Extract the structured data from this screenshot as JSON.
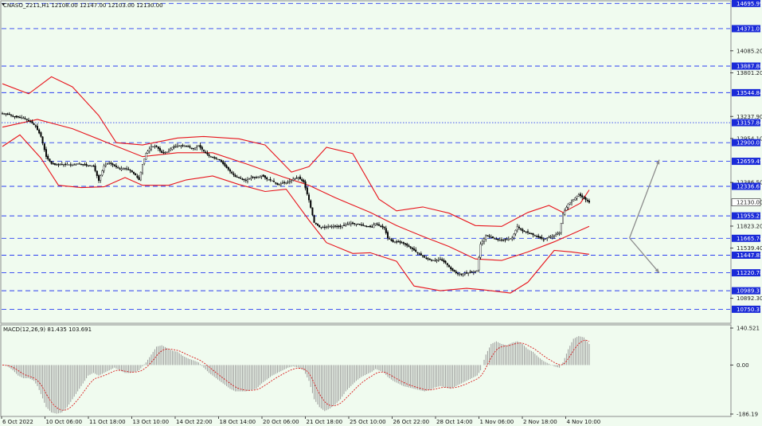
{
  "header": {
    "symbol_info": "CNASO_2211,H1  12108.00 12147.00 12103.00 12130.00"
  },
  "macd_header": "MACD(12,26,9) 81.435 103.691",
  "colors": {
    "background": "#f0fbef",
    "level_line": "#2a3ef0",
    "level_tag": "#1a2ad8",
    "bollinger": "#e8141c",
    "candle": "#000000",
    "macd_hist": "#9a9a9a",
    "macd_signal": "#d81e1e",
    "arrow": "#8c8c8c",
    "current_price_tag": "#ffffff"
  },
  "chart_data": {
    "type": "candlestick",
    "title": "CNASO_2211,H1",
    "ohlc_last": {
      "open": 12108.0,
      "high": 12147.0,
      "low": 12103.0,
      "close": 12130.0
    },
    "ylim": [
      10590,
      14720
    ],
    "price_labels": [
      "14695.99",
      "14371.01",
      "14085.20",
      "13887.88",
      "13801.20",
      "13544.84",
      "13237.90",
      "13157.84",
      "12954.10",
      "12900.03",
      "12659.49",
      "12386.50",
      "12336.61",
      "12130.00",
      "11955.21",
      "11823.20",
      "11665.74",
      "11539.40",
      "11447.85",
      "11220.78",
      "10989.37",
      "10892.30",
      "10750.37"
    ],
    "levels": [
      {
        "price": 14695.99,
        "label": "14695.99",
        "style": "dashed"
      },
      {
        "price": 14371.01,
        "label": "14371.01",
        "style": "dashed"
      },
      {
        "price": 13887.88,
        "label": "13887.88",
        "style": "dashed"
      },
      {
        "price": 13544.84,
        "label": "13544.84",
        "style": "dashed"
      },
      {
        "price": 13157.84,
        "label": "13157.84",
        "style": "dotted"
      },
      {
        "price": 12900.03,
        "label": "12900.03",
        "style": "dashed"
      },
      {
        "price": 12659.49,
        "label": "12659.49",
        "style": "dashed"
      },
      {
        "price": 12336.61,
        "label": "12336.61",
        "style": "dashed"
      },
      {
        "price": 11955.21,
        "label": "11955.21",
        "style": "dashed"
      },
      {
        "price": 11665.74,
        "label": "11665.74",
        "style": "dashed"
      },
      {
        "price": 11447.85,
        "label": "11447.85",
        "style": "dashed"
      },
      {
        "price": 11220.78,
        "label": "11220.78",
        "style": "dashed"
      },
      {
        "price": 10989.37,
        "label": "10989.37",
        "style": "dashed"
      },
      {
        "price": 10750.37,
        "label": "10750.37",
        "style": "dashed"
      }
    ],
    "current_price": {
      "price": 12130.0,
      "label": "12130.00"
    },
    "x_labels": [
      "6 Oct 2022",
      "10 Oct 06:00",
      "11 Oct 18:00",
      "13 Oct 10:00",
      "14 Oct 22:00",
      "18 Oct 14:00",
      "20 Oct 06:00",
      "21 Oct 18:00",
      "25 Oct 10:00",
      "26 Oct 22:00",
      "28 Oct 14:00",
      "1 Nov 06:00",
      "2 Nov 18:00",
      "4 Nov 10:00"
    ],
    "close_path": [
      [
        0,
        13280
      ],
      [
        4,
        13260
      ],
      [
        8,
        13230
      ],
      [
        12,
        13220
      ],
      [
        16,
        13170
      ],
      [
        19,
        13110
      ],
      [
        22,
        12980
      ],
      [
        25,
        12720
      ],
      [
        28,
        12630
      ],
      [
        31,
        12610
      ],
      [
        34,
        12620
      ],
      [
        37,
        12620
      ],
      [
        40,
        12610
      ],
      [
        43,
        12630
      ],
      [
        46,
        12620
      ],
      [
        49,
        12600
      ],
      [
        52,
        12600
      ],
      [
        55,
        12410
      ],
      [
        58,
        12600
      ],
      [
        61,
        12640
      ],
      [
        64,
        12600
      ],
      [
        67,
        12560
      ],
      [
        70,
        12570
      ],
      [
        73,
        12540
      ],
      [
        76,
        12480
      ],
      [
        78,
        12420
      ],
      [
        80,
        12620
      ],
      [
        82,
        12760
      ],
      [
        85,
        12850
      ],
      [
        88,
        12850
      ],
      [
        91,
        12770
      ],
      [
        94,
        12780
      ],
      [
        97,
        12840
      ],
      [
        100,
        12860
      ],
      [
        103,
        12860
      ],
      [
        106,
        12850
      ],
      [
        109,
        12820
      ],
      [
        112,
        12860
      ],
      [
        115,
        12790
      ],
      [
        118,
        12730
      ],
      [
        121,
        12700
      ],
      [
        124,
        12680
      ],
      [
        127,
        12600
      ],
      [
        130,
        12530
      ],
      [
        133,
        12460
      ],
      [
        136,
        12440
      ],
      [
        139,
        12410
      ],
      [
        142,
        12450
      ],
      [
        145,
        12450
      ],
      [
        148,
        12480
      ],
      [
        151,
        12430
      ],
      [
        154,
        12410
      ],
      [
        157,
        12360
      ],
      [
        160,
        12380
      ],
      [
        163,
        12390
      ],
      [
        166,
        12430
      ],
      [
        169,
        12450
      ],
      [
        172,
        12390
      ],
      [
        175,
        12160
      ],
      [
        178,
        11870
      ],
      [
        181,
        11810
      ],
      [
        184,
        11810
      ],
      [
        187,
        11820
      ],
      [
        190,
        11820
      ],
      [
        193,
        11820
      ],
      [
        196,
        11840
      ],
      [
        199,
        11860
      ],
      [
        202,
        11850
      ],
      [
        205,
        11840
      ],
      [
        208,
        11820
      ],
      [
        211,
        11810
      ],
      [
        213,
        11860
      ],
      [
        215,
        11830
      ],
      [
        218,
        11800
      ],
      [
        220,
        11670
      ],
      [
        223,
        11620
      ],
      [
        226,
        11620
      ],
      [
        229,
        11600
      ],
      [
        232,
        11560
      ],
      [
        235,
        11510
      ],
      [
        238,
        11460
      ],
      [
        241,
        11420
      ],
      [
        244,
        11390
      ],
      [
        247,
        11380
      ],
      [
        250,
        11390
      ],
      [
        253,
        11350
      ],
      [
        256,
        11270
      ],
      [
        259,
        11220
      ],
      [
        262,
        11200
      ],
      [
        265,
        11220
      ],
      [
        268,
        11230
      ],
      [
        271,
        11250
      ],
      [
        273,
        11590
      ],
      [
        276,
        11700
      ],
      [
        279,
        11680
      ],
      [
        282,
        11650
      ],
      [
        285,
        11640
      ],
      [
        288,
        11650
      ],
      [
        291,
        11670
      ],
      [
        294,
        11820
      ],
      [
        297,
        11760
      ],
      [
        300,
        11740
      ],
      [
        303,
        11710
      ],
      [
        306,
        11680
      ],
      [
        309,
        11650
      ],
      [
        312,
        11680
      ],
      [
        315,
        11700
      ],
      [
        318,
        11740
      ],
      [
        320,
        11980
      ],
      [
        323,
        12110
      ],
      [
        326,
        12170
      ],
      [
        329,
        12230
      ],
      [
        332,
        12180
      ],
      [
        335,
        12130
      ]
    ],
    "bollinger": {
      "middle": [
        [
          0,
          13100
        ],
        [
          20,
          13200
        ],
        [
          40,
          13080
        ],
        [
          60,
          12900
        ],
        [
          80,
          12720
        ],
        [
          100,
          12770
        ],
        [
          120,
          12770
        ],
        [
          140,
          12620
        ],
        [
          160,
          12460
        ],
        [
          175,
          12350
        ],
        [
          190,
          12190
        ],
        [
          210,
          12000
        ],
        [
          225,
          11830
        ],
        [
          240,
          11690
        ],
        [
          255,
          11560
        ],
        [
          270,
          11400
        ],
        [
          285,
          11380
        ],
        [
          300,
          11490
        ],
        [
          315,
          11620
        ],
        [
          335,
          11820
        ]
      ],
      "upper": [
        [
          0,
          13660
        ],
        [
          15,
          13530
        ],
        [
          28,
          13750
        ],
        [
          40,
          13620
        ],
        [
          55,
          13250
        ],
        [
          65,
          12900
        ],
        [
          80,
          12870
        ],
        [
          100,
          12960
        ],
        [
          115,
          12980
        ],
        [
          135,
          12950
        ],
        [
          150,
          12870
        ],
        [
          165,
          12520
        ],
        [
          175,
          12590
        ],
        [
          185,
          12840
        ],
        [
          200,
          12760
        ],
        [
          215,
          12170
        ],
        [
          225,
          12020
        ],
        [
          240,
          12070
        ],
        [
          255,
          11990
        ],
        [
          270,
          11830
        ],
        [
          285,
          11820
        ],
        [
          300,
          12000
        ],
        [
          312,
          12090
        ],
        [
          320,
          12000
        ],
        [
          330,
          12120
        ],
        [
          335,
          12290
        ]
      ],
      "lower": [
        [
          0,
          12850
        ],
        [
          10,
          13000
        ],
        [
          22,
          12700
        ],
        [
          32,
          12350
        ],
        [
          45,
          12320
        ],
        [
          58,
          12330
        ],
        [
          70,
          12450
        ],
        [
          80,
          12350
        ],
        [
          95,
          12350
        ],
        [
          105,
          12420
        ],
        [
          120,
          12470
        ],
        [
          135,
          12360
        ],
        [
          150,
          12270
        ],
        [
          162,
          12300
        ],
        [
          175,
          11900
        ],
        [
          185,
          11610
        ],
        [
          200,
          11470
        ],
        [
          210,
          11480
        ],
        [
          225,
          11370
        ],
        [
          235,
          11050
        ],
        [
          250,
          10990
        ],
        [
          265,
          11020
        ],
        [
          275,
          11000
        ],
        [
          290,
          10960
        ],
        [
          300,
          11100
        ],
        [
          315,
          11510
        ],
        [
          325,
          11490
        ],
        [
          335,
          11460
        ]
      ]
    },
    "arrows": [
      {
        "from": [
          358,
          11670
        ],
        "to": [
          375,
          12680
        ]
      },
      {
        "from": [
          358,
          11670
        ],
        "to": [
          375,
          11220
        ]
      }
    ],
    "macd": {
      "ylim": [
        -186.19,
        140.521
      ],
      "labels": [
        "140.521",
        "0.00",
        "-186.19"
      ],
      "histogram": [
        [
          0,
          0
        ],
        [
          3,
          -5
        ],
        [
          6,
          -20
        ],
        [
          9,
          -40
        ],
        [
          12,
          -50
        ],
        [
          15,
          -50
        ],
        [
          18,
          -60
        ],
        [
          20,
          -80
        ],
        [
          22,
          -110
        ],
        [
          25,
          -160
        ],
        [
          28,
          -180
        ],
        [
          31,
          -185
        ],
        [
          34,
          -180
        ],
        [
          37,
          -160
        ],
        [
          40,
          -130
        ],
        [
          43,
          -100
        ],
        [
          46,
          -70
        ],
        [
          49,
          -40
        ],
        [
          52,
          -30
        ],
        [
          55,
          -40
        ],
        [
          58,
          -30
        ],
        [
          61,
          -20
        ],
        [
          64,
          -10
        ],
        [
          67,
          -20
        ],
        [
          70,
          -30
        ],
        [
          73,
          -30
        ],
        [
          76,
          -25
        ],
        [
          78,
          -20
        ],
        [
          80,
          -5
        ],
        [
          82,
          10
        ],
        [
          85,
          40
        ],
        [
          88,
          70
        ],
        [
          91,
          75
        ],
        [
          94,
          65
        ],
        [
          97,
          55
        ],
        [
          100,
          50
        ],
        [
          103,
          35
        ],
        [
          106,
          25
        ],
        [
          109,
          18
        ],
        [
          112,
          10
        ],
        [
          115,
          -10
        ],
        [
          118,
          -30
        ],
        [
          121,
          -45
        ],
        [
          124,
          -60
        ],
        [
          127,
          -75
        ],
        [
          130,
          -90
        ],
        [
          133,
          -100
        ],
        [
          136,
          -100
        ],
        [
          139,
          -100
        ],
        [
          142,
          -95
        ],
        [
          145,
          -90
        ],
        [
          148,
          -70
        ],
        [
          151,
          -55
        ],
        [
          154,
          -40
        ],
        [
          157,
          -30
        ],
        [
          160,
          -20
        ],
        [
          163,
          -10
        ],
        [
          166,
          -5
        ],
        [
          169,
          -10
        ],
        [
          172,
          -20
        ],
        [
          175,
          -60
        ],
        [
          178,
          -130
        ],
        [
          181,
          -160
        ],
        [
          184,
          -175
        ],
        [
          187,
          -165
        ],
        [
          190,
          -150
        ],
        [
          193,
          -130
        ],
        [
          196,
          -100
        ],
        [
          199,
          -80
        ],
        [
          202,
          -60
        ],
        [
          205,
          -45
        ],
        [
          208,
          -35
        ],
        [
          211,
          -25
        ],
        [
          213,
          -15
        ],
        [
          215,
          -20
        ],
        [
          218,
          -30
        ],
        [
          220,
          -45
        ],
        [
          223,
          -60
        ],
        [
          226,
          -70
        ],
        [
          229,
          -80
        ],
        [
          232,
          -85
        ],
        [
          235,
          -90
        ],
        [
          238,
          -95
        ],
        [
          241,
          -100
        ],
        [
          244,
          -95
        ],
        [
          247,
          -85
        ],
        [
          250,
          -80
        ],
        [
          253,
          -85
        ],
        [
          256,
          -90
        ],
        [
          259,
          -80
        ],
        [
          262,
          -70
        ],
        [
          265,
          -60
        ],
        [
          268,
          -50
        ],
        [
          271,
          -40
        ],
        [
          273,
          -20
        ],
        [
          276,
          40
        ],
        [
          279,
          80
        ],
        [
          282,
          90
        ],
        [
          285,
          80
        ],
        [
          288,
          75
        ],
        [
          291,
          85
        ],
        [
          294,
          90
        ],
        [
          297,
          80
        ],
        [
          300,
          60
        ],
        [
          303,
          50
        ],
        [
          306,
          30
        ],
        [
          309,
          15
        ],
        [
          312,
          5
        ],
        [
          315,
          -5
        ],
        [
          318,
          -10
        ],
        [
          320,
          10
        ],
        [
          323,
          60
        ],
        [
          326,
          100
        ],
        [
          329,
          110
        ],
        [
          332,
          105
        ],
        [
          335,
          80
        ]
      ]
    }
  }
}
